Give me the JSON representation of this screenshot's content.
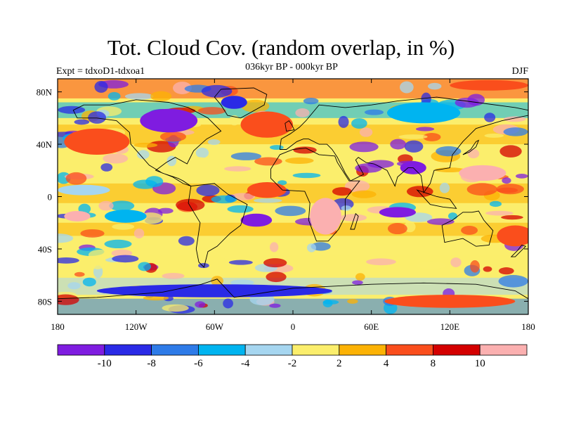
{
  "chart_data": {
    "type": "heatmap",
    "title": "Tot. Cloud Cov. (random overlap, in %)",
    "subtitle": "036kyr BP - 000kyr BP",
    "left_label": "Expt = tdxoD1-tdxoa1",
    "right_label": "DJF",
    "x_ticks": [
      {
        "value": -180,
        "label": "180"
      },
      {
        "value": -120,
        "label": "120W"
      },
      {
        "value": -60,
        "label": "60W"
      },
      {
        "value": 0,
        "label": "0"
      },
      {
        "value": 60,
        "label": "60E"
      },
      {
        "value": 120,
        "label": "120E"
      },
      {
        "value": 180,
        "label": "180"
      }
    ],
    "y_ticks": [
      {
        "value": 80,
        "label": "80N"
      },
      {
        "value": 40,
        "label": "40N"
      },
      {
        "value": 0,
        "label": "0"
      },
      {
        "value": -40,
        "label": "40S"
      },
      {
        "value": -80,
        "label": "80S"
      }
    ],
    "xlim": [
      -180,
      180
    ],
    "ylim": [
      -90,
      90
    ],
    "colorbar": {
      "levels": [
        -10,
        -8,
        -6,
        -4,
        -2,
        2,
        4,
        8,
        10
      ],
      "level_labels": [
        "-10",
        "-8",
        "-6",
        "-4",
        "-2",
        "2",
        "4",
        "8",
        "10"
      ],
      "colors": [
        "#7f1ce0",
        "#2a2ae6",
        "#2e7be8",
        "#00b4f0",
        "#a6d6f0",
        "#fbee6c",
        "#fcb204",
        "#fa4e1c",
        "#d40000",
        "#fbb0b0"
      ]
    },
    "features": [
      {
        "name": "north-america-negative",
        "lon": -95,
        "lat": 58,
        "rx": 22,
        "ry": 9,
        "level": 0
      },
      {
        "name": "greenland-negative",
        "lon": -45,
        "lat": 72,
        "rx": 10,
        "ry": 5,
        "level": 1
      },
      {
        "name": "siberia-negative",
        "lon": 100,
        "lat": 64,
        "rx": 28,
        "ry": 8,
        "level": 3
      },
      {
        "name": "south-asia-negative",
        "lon": 92,
        "lat": 22,
        "rx": 10,
        "ry": 5,
        "level": 0
      },
      {
        "name": "indian-ocean-negative",
        "lon": 80,
        "lat": -12,
        "rx": 14,
        "ry": 4,
        "level": 0
      },
      {
        "name": "south-atlantic-negative",
        "lon": -28,
        "lat": -18,
        "rx": 12,
        "ry": 5,
        "level": 0
      },
      {
        "name": "east-pacific-negative",
        "lon": -128,
        "lat": -15,
        "rx": 16,
        "ry": 5,
        "level": 3
      },
      {
        "name": "tropical-pacific-negative",
        "lon": -160,
        "lat": 5,
        "rx": 20,
        "ry": 4,
        "level": 4
      },
      {
        "name": "southern-ocean-negative",
        "lon": -60,
        "lat": -72,
        "rx": 90,
        "ry": 5,
        "level": 1
      },
      {
        "name": "africa-positive",
        "lon": 25,
        "lat": -15,
        "rx": 12,
        "ry": 14,
        "level": 9
      },
      {
        "name": "north-pacific-positive",
        "lon": -150,
        "lat": 42,
        "rx": 25,
        "ry": 10,
        "level": 7
      },
      {
        "name": "north-atlantic-positive",
        "lon": -20,
        "lat": 55,
        "rx": 20,
        "ry": 10,
        "level": 7
      },
      {
        "name": "tropical-atlantic-positive",
        "lon": -20,
        "lat": 5,
        "rx": 15,
        "ry": 6,
        "level": 7
      },
      {
        "name": "west-pacific-positive",
        "lon": 145,
        "lat": 18,
        "rx": 18,
        "ry": 6,
        "level": 9
      },
      {
        "name": "arctic-positive",
        "lon": 150,
        "lat": 85,
        "rx": 30,
        "ry": 4,
        "level": 7
      },
      {
        "name": "antarctica-positive",
        "lon": 120,
        "lat": -80,
        "rx": 50,
        "ry": 5,
        "level": 7
      },
      {
        "name": "south-pacific-positive",
        "lon": 170,
        "lat": -30,
        "rx": 14,
        "ry": 8,
        "level": 7
      },
      {
        "name": "pacific-midlat-positive",
        "lon": -165,
        "lat": -15,
        "rx": 10,
        "ry": 4,
        "level": 9
      }
    ]
  }
}
